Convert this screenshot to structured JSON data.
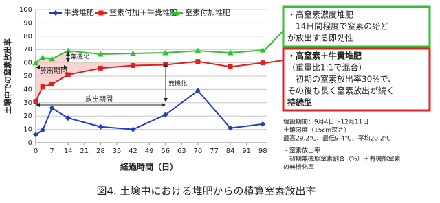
{
  "chart_data": {
    "type": "line",
    "x": [
      0,
      3,
      7,
      14,
      28,
      42,
      56,
      70,
      84,
      98
    ],
    "series": [
      {
        "name": "牛糞堆肥",
        "color": "#1f3fbf",
        "marker": "diamond",
        "values": [
          6,
          9.5,
          26,
          18.5,
          12,
          10,
          21,
          39,
          11,
          14
        ]
      },
      {
        "name": "窒素付加＋牛糞堆肥",
        "color": "#e02020",
        "marker": "square",
        "values": [
          31,
          42,
          44,
          51,
          56,
          58,
          58.5,
          61,
          57,
          60
        ]
      },
      {
        "name": "窒素付加堆肥",
        "color": "#30c030",
        "marker": "triangle",
        "values": [
          60,
          64,
          63,
          69,
          66.5,
          67,
          67.5,
          69,
          67.5,
          69.5
        ]
      }
    ],
    "xlim": [
      0,
      100
    ],
    "xticks": [
      0,
      7,
      14,
      21,
      28,
      35,
      42,
      49,
      56,
      63,
      70,
      77,
      84,
      91,
      98
    ],
    "ylim": [
      0,
      100
    ],
    "yticks": [
      0,
      10,
      20,
      30,
      40,
      50,
      60,
      70,
      80,
      90,
      100
    ],
    "grid": true,
    "xlabel": "経過時間（日）",
    "ylabel": "土壌中での窒素放出率",
    "annotations": [
      "無機化",
      "放出期間",
      "無機化",
      "放出期間"
    ]
  },
  "side_panel": {
    "green_box": [
      "・高窒素濃度堆肥",
      "　14日間程度で窒素の殆ど",
      "が放出する即効性"
    ],
    "red_box": [
      "・高窒素＋牛糞堆肥",
      "（重量比1:1で混合）",
      "　初期の窒素放出率30%で、",
      "その後も長く窒素放出が続く",
      "持続型"
    ],
    "notes": [
      "埋設期間：9月4日～12月11日",
      "土壌温度（15cm深さ）",
      "最高29.2℃、最低9.4℃、平均20.2℃",
      "・窒素放出率",
      "　初期無機態窒素割合（%）＋有機態窒素",
      "の無機化率"
    ]
  },
  "caption": "図4. 土壌中における堆肥からの積算窒素放出率"
}
